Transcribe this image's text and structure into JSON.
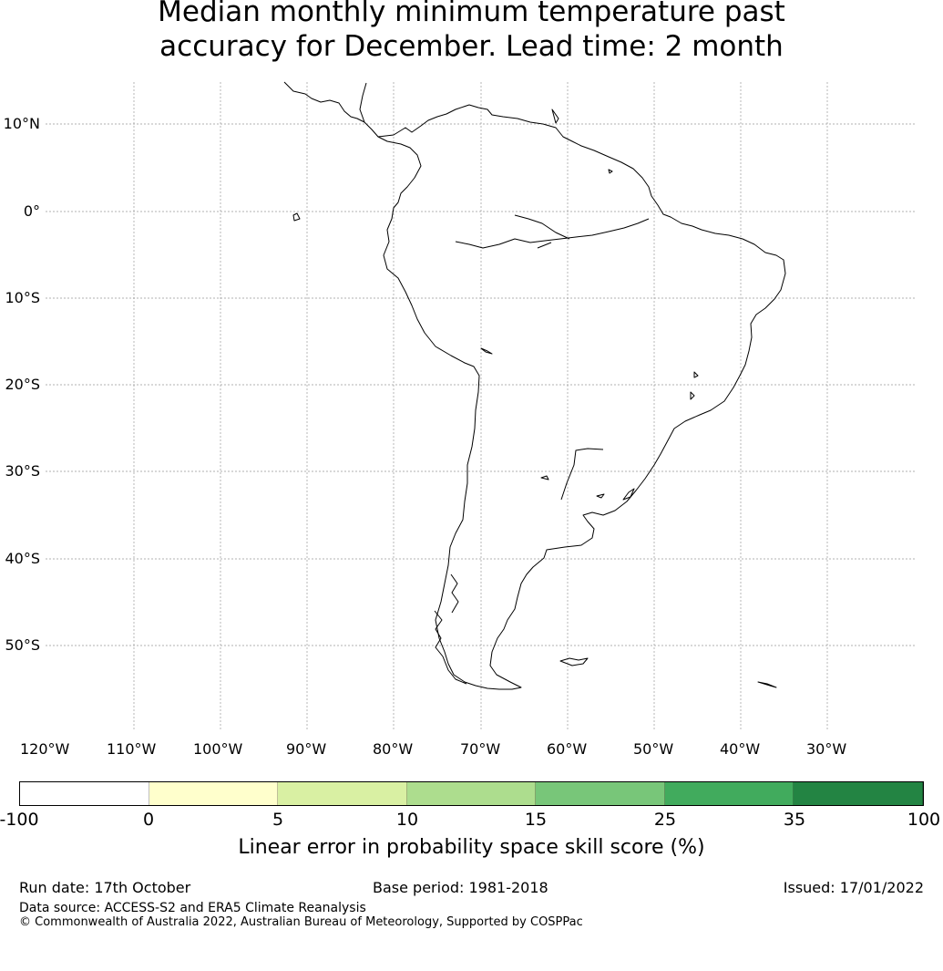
{
  "title": {
    "line1": "Median monthly minimum temperature past",
    "line2": "accuracy for December. Lead time: 2 month"
  },
  "map": {
    "region": "South America",
    "lat_labels": [
      "10°N",
      "0°",
      "10°S",
      "20°S",
      "30°S",
      "40°S",
      "50°S"
    ],
    "lon_labels": [
      "120°W",
      "110°W",
      "100°W",
      "90°W",
      "80°W",
      "70°W",
      "60°W",
      "50°W",
      "40°W",
      "30°W"
    ],
    "gridline_color": "#999999",
    "coast_color": "#000000"
  },
  "colorbar": {
    "label": "Linear error in probability space skill score (%)",
    "ticks": [
      "-100",
      "0",
      "5",
      "10",
      "15",
      "25",
      "35",
      "100"
    ],
    "bins": [
      {
        "from": "-100",
        "to": "0",
        "color": "#ffffff"
      },
      {
        "from": "0",
        "to": "5",
        "color": "#ffffcc"
      },
      {
        "from": "5",
        "to": "10",
        "color": "#d9f0a3"
      },
      {
        "from": "10",
        "to": "15",
        "color": "#addd8e"
      },
      {
        "from": "15",
        "to": "25",
        "color": "#78c679"
      },
      {
        "from": "25",
        "to": "35",
        "color": "#41ab5d"
      },
      {
        "from": "35",
        "to": "100",
        "color": "#238443"
      }
    ]
  },
  "footer": {
    "run_date": "Run date: 17th October",
    "base_period": "Base period: 1981-2018",
    "issued": "Issued: 17/01/2022",
    "data_source": "Data source: ACCESS-S2 and ERA5 Climate Reanalysis",
    "copyright": "© Commonwealth of Australia 2022, Australian Bureau of Meteorology, Supported by COSPPac"
  }
}
